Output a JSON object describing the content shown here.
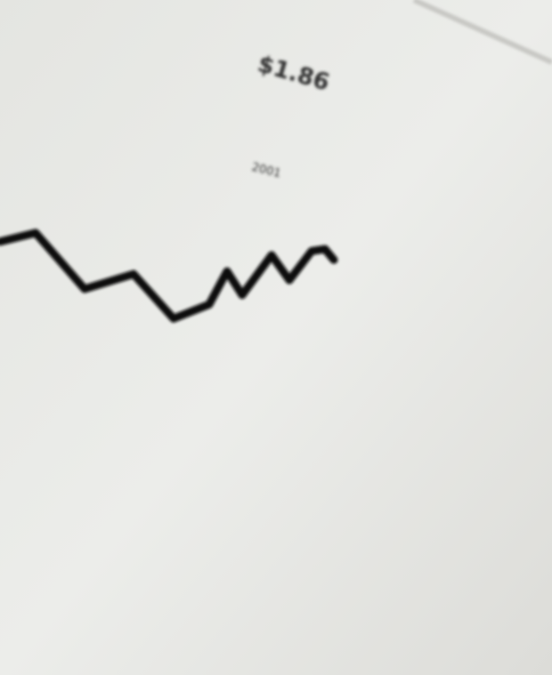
{
  "chart_data": {
    "type": "line",
    "annotations": [
      "$1.86",
      "2001"
    ],
    "x": [
      0,
      40,
      95,
      150,
      195,
      235,
      255,
      272,
      305,
      325,
      350,
      365,
      375
    ],
    "values": [
      64.2,
      65.5,
      57.2,
      59.4,
      52.8,
      54.9,
      59.8,
      56.3,
      62.2,
      58.5,
      62.8,
      63.1,
      61.5
    ],
    "xlim": [
      0,
      620
    ],
    "ylim": [
      0,
      100
    ],
    "color": "#111111"
  }
}
